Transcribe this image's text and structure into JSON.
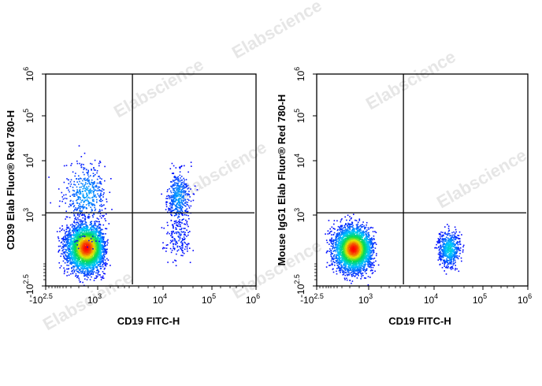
{
  "watermark": "Elabscience®",
  "chart_data": [
    {
      "type": "scatter",
      "subtype": "flow-cytometry-density-dotplot",
      "xlabel": "CD19 FITC-H",
      "ylabel": "CD39 Elab Fluor® Red 780-H",
      "x_ticks": [
        {
          "base": "-10",
          "exp": "2.5"
        },
        {
          "base": "10",
          "exp": "3"
        },
        {
          "base": "10",
          "exp": "4"
        },
        {
          "base": "10",
          "exp": "5"
        },
        {
          "base": "10",
          "exp": "6"
        }
      ],
      "y_ticks": [
        {
          "base": "-10",
          "exp": "2.5"
        },
        {
          "base": "10",
          "exp": "3"
        },
        {
          "base": "10",
          "exp": "4"
        },
        {
          "base": "10",
          "exp": "5"
        },
        {
          "base": "10",
          "exp": "6"
        }
      ],
      "xlim": [
        -316,
        1000000
      ],
      "ylim": [
        -316,
        1000000
      ],
      "gates": {
        "x": 3400,
        "y": 1100
      },
      "populations": [
        {
          "name": "CD19- CD39-",
          "x": 700,
          "y": 400,
          "sx_log": 0.0,
          "sx": 260,
          "sy": 230,
          "count": 3000
        },
        {
          "name": "CD19- CD39+",
          "x": 700,
          "y": 2500,
          "sx": 300,
          "sy_log": 0.3,
          "count": 450
        },
        {
          "name": "CD19+ CD39+",
          "x": 20000,
          "y": 2200,
          "sx_log": 0.12,
          "sy_log": 0.25,
          "count": 450
        },
        {
          "name": "CD19+ CD39-",
          "x": 20000,
          "y": 600,
          "sx_log": 0.12,
          "sy": 220,
          "count": 150
        }
      ]
    },
    {
      "type": "scatter",
      "subtype": "flow-cytometry-density-dotplot",
      "xlabel": "CD19 FITC-H",
      "ylabel": "Mouse IgG1 Elab Fluor® Red 780-H",
      "x_ticks": [
        {
          "base": "-10",
          "exp": "2.5"
        },
        {
          "base": "10",
          "exp": "3"
        },
        {
          "base": "10",
          "exp": "4"
        },
        {
          "base": "10",
          "exp": "5"
        },
        {
          "base": "10",
          "exp": "6"
        }
      ],
      "y_ticks": [
        {
          "base": "-10",
          "exp": "2.5"
        },
        {
          "base": "10",
          "exp": "3"
        },
        {
          "base": "10",
          "exp": "4"
        },
        {
          "base": "10",
          "exp": "5"
        },
        {
          "base": "10",
          "exp": "6"
        }
      ],
      "xlim": [
        -316,
        1000000
      ],
      "ylim": [
        -316,
        1000000
      ],
      "gates": {
        "x": 3400,
        "y": 1100
      },
      "populations": [
        {
          "name": "CD19- isotype",
          "x": 600,
          "y": 380,
          "sx": 250,
          "sy": 210,
          "count": 3000
        },
        {
          "name": "CD19+ isotype",
          "x": 20000,
          "y": 380,
          "sx_log": 0.11,
          "sy": 170,
          "count": 600
        }
      ]
    }
  ]
}
